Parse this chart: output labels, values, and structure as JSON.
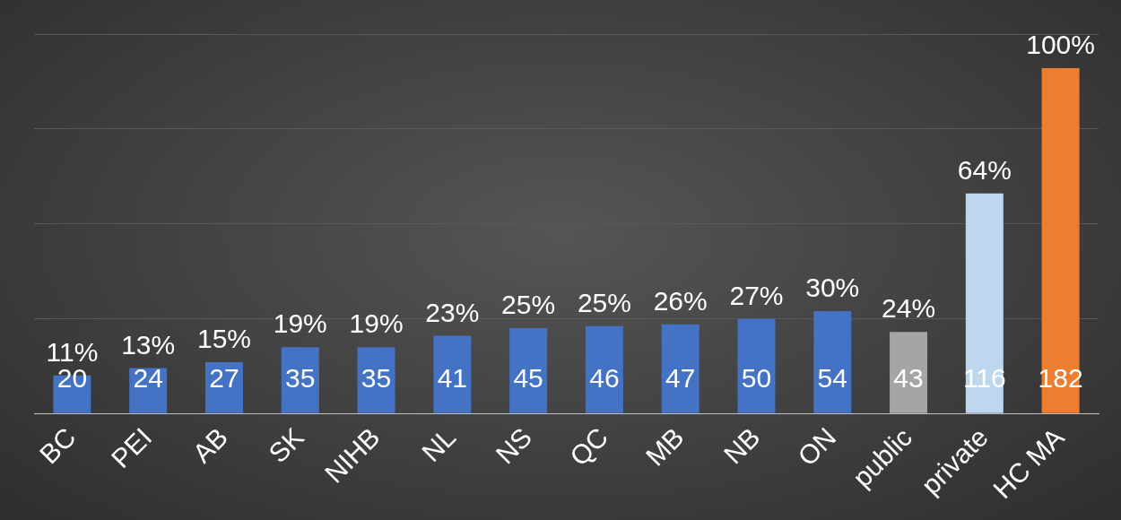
{
  "chart_data": {
    "type": "bar",
    "categories": [
      "BC",
      "PEI",
      "AB",
      "SK",
      "NIHB",
      "NL",
      "NS",
      "QC",
      "MB",
      "NB",
      "ON",
      "public",
      "private",
      "HC MA"
    ],
    "values": [
      20,
      24,
      27,
      35,
      35,
      41,
      45,
      46,
      47,
      50,
      54,
      43,
      116,
      182
    ],
    "colors": [
      "#4472c4",
      "#4472c4",
      "#4472c4",
      "#4472c4",
      "#4472c4",
      "#4472c4",
      "#4472c4",
      "#4472c4",
      "#4472c4",
      "#4472c4",
      "#4472c4",
      "#a5a5a5",
      "#bdd7ee",
      "#ed7d31"
    ],
    "data_labels": true,
    "annotations": [
      {
        "text": "11%",
        "x": "BC",
        "y": 20
      },
      {
        "text": "13%",
        "x": "PEI",
        "y": 24
      },
      {
        "text": "15%",
        "x": "AB",
        "y": 27
      },
      {
        "text": "19%",
        "x": "SK",
        "y": 35
      },
      {
        "text": "19%",
        "x": "NIHB",
        "y": 35
      },
      {
        "text": "23%",
        "x": "NL",
        "y": 41
      },
      {
        "text": "25%",
        "x": "NS",
        "y": 45
      },
      {
        "text": "25%",
        "x": "QC",
        "y": 46
      },
      {
        "text": "26%",
        "x": "MB",
        "y": 47
      },
      {
        "text": "27%",
        "x": "NB",
        "y": 50
      },
      {
        "text": "30%",
        "x": "ON",
        "y": 54
      },
      {
        "text": "24%",
        "x": "public",
        "y": 43
      },
      {
        "text": "64%",
        "x": "private",
        "y": 116
      },
      {
        "text": "100%",
        "x": "HC MA",
        "y": 182
      }
    ],
    "ylim": [
      0,
      200
    ],
    "yticks": [
      {
        "value": 0,
        "label": null
      },
      {
        "value": 50,
        "label": null
      },
      {
        "value": 100,
        "label": null
      },
      {
        "value": 150,
        "label": null
      },
      {
        "value": 200,
        "label": null
      }
    ],
    "tick_labels": "x",
    "grid": "y",
    "legend": false
  }
}
